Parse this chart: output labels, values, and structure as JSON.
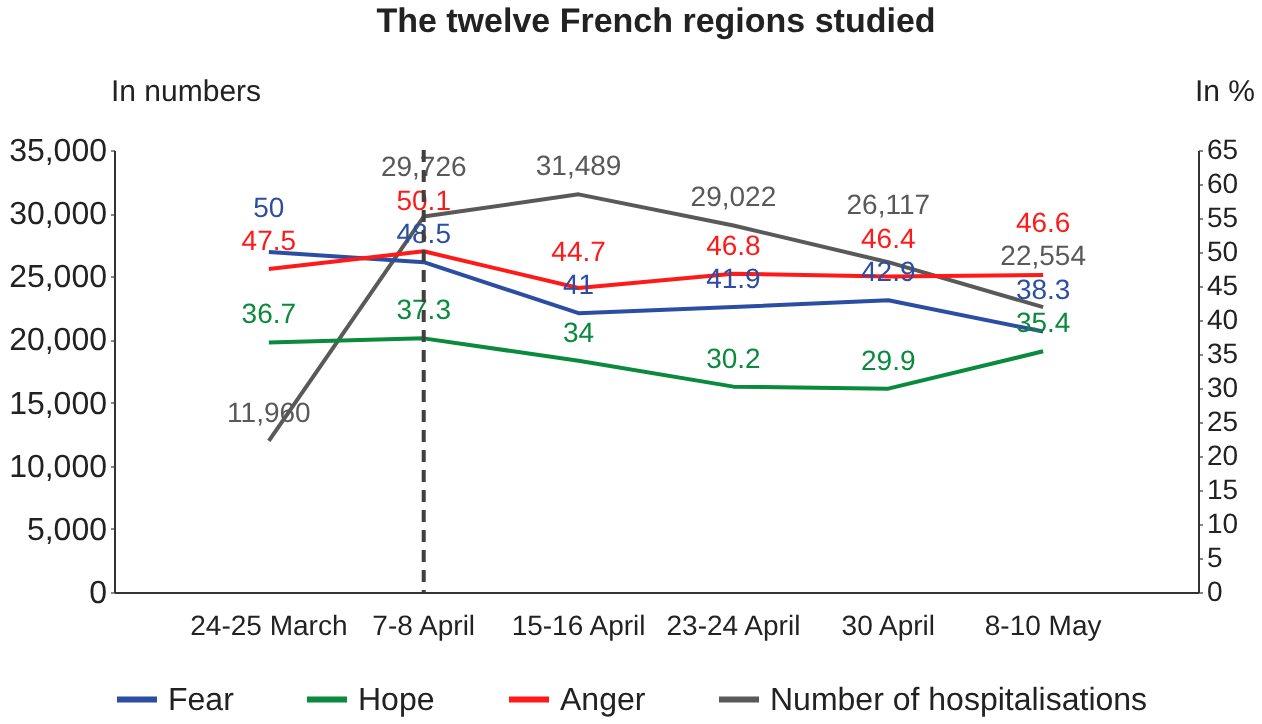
{
  "chart_data": {
    "type": "line",
    "title": "The twelve French regions studied",
    "ylabel": "In numbers",
    "y2label": "In %",
    "categories": [
      "24-25 March",
      "7-8 April",
      "15-16 April",
      "23-24 April",
      "30 April",
      "8-10 May"
    ],
    "series": [
      {
        "name": "Fear",
        "color": "#2b4ea2",
        "axis": "y2",
        "values": [
          50,
          48.5,
          41,
          41.9,
          42.9,
          38.3
        ]
      },
      {
        "name": "Hope",
        "color": "#0a8a3c",
        "axis": "y2",
        "values": [
          36.7,
          37.3,
          34,
          30.2,
          29.9,
          35.4
        ]
      },
      {
        "name": "Anger",
        "color": "#ff1a1a",
        "axis": "y2",
        "values": [
          47.5,
          50.1,
          44.7,
          46.8,
          46.4,
          46.6
        ]
      },
      {
        "name": "Number of hospitalisations",
        "color": "#595959",
        "axis": "y",
        "values": [
          11960,
          29726,
          31489,
          29022,
          26117,
          22554
        ],
        "value_labels": [
          "11,960",
          "29,726",
          "31,489",
          "29,022",
          "26,117",
          "22,554"
        ]
      }
    ],
    "ylim": [
      0,
      35000
    ],
    "yticks": [
      0,
      {
        "value": 5000,
        "label": "5,000"
      },
      {
        "value": 10000,
        "label": "10,000"
      },
      {
        "value": 15000,
        "label": "15,000"
      },
      {
        "value": 20000,
        "label": "20,000"
      },
      {
        "value": 25000,
        "label": "25,000"
      },
      {
        "value": 30000,
        "label": "30,000"
      },
      {
        "value": 35000,
        "label": "35,000"
      }
    ],
    "y2lim": [
      0,
      65
    ],
    "y2ticks": [
      0,
      5,
      10,
      15,
      20,
      25,
      30,
      35,
      40,
      45,
      50,
      55,
      60,
      65
    ],
    "ref_lines": [
      {
        "axis": "x",
        "value": "7-8 April",
        "color": "#404040",
        "line_style": "dashed"
      }
    ],
    "data_labels": true,
    "legend": "bottom",
    "grid": false,
    "marker": "none",
    "line_style": "solid"
  }
}
